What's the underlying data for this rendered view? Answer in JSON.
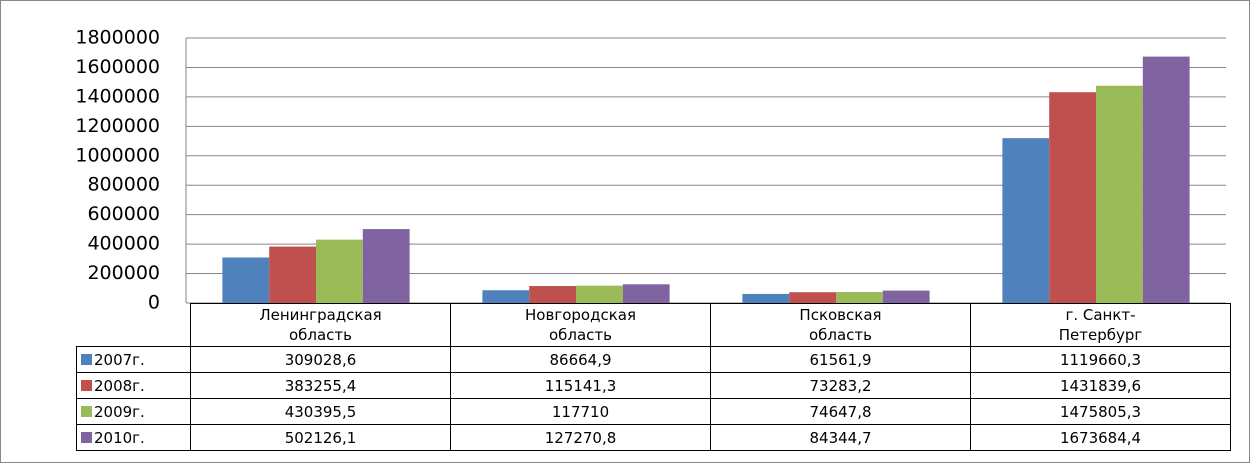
{
  "chart_data": {
    "type": "bar",
    "categories": [
      "Ленинградская область",
      "Новгородская область",
      "Псковская область",
      "г. Санкт-Петербург"
    ],
    "series": [
      {
        "name": "2007г.",
        "color": "#4f81bd",
        "values": [
          309028.6,
          86664.9,
          61561.9,
          1119660.3
        ],
        "value_labels": [
          "309028,6",
          "86664,9",
          "61561,9",
          "1119660,3"
        ]
      },
      {
        "name": "2008г.",
        "color": "#c0504d",
        "values": [
          383255.4,
          115141.3,
          73283.2,
          1431839.6
        ],
        "value_labels": [
          "383255,4",
          "115141,3",
          "73283,2",
          "1431839,6"
        ]
      },
      {
        "name": "2009г.",
        "color": "#9bbb59",
        "values": [
          430395.5,
          117710,
          74647.8,
          1475805.3
        ],
        "value_labels": [
          "430395,5",
          "117710",
          "74647,8",
          "1475805,3"
        ]
      },
      {
        "name": "2010г.",
        "color": "#8064a2",
        "values": [
          502126.1,
          127270.8,
          84344.7,
          1673684.4
        ],
        "value_labels": [
          "502126,1",
          "127270,8",
          "84344,7",
          "1673684,4"
        ]
      }
    ],
    "ylim": [
      0,
      1800000
    ],
    "yticks": [
      0,
      200000,
      400000,
      600000,
      800000,
      1000000,
      1200000,
      1400000,
      1600000,
      1800000
    ],
    "grid": true
  }
}
